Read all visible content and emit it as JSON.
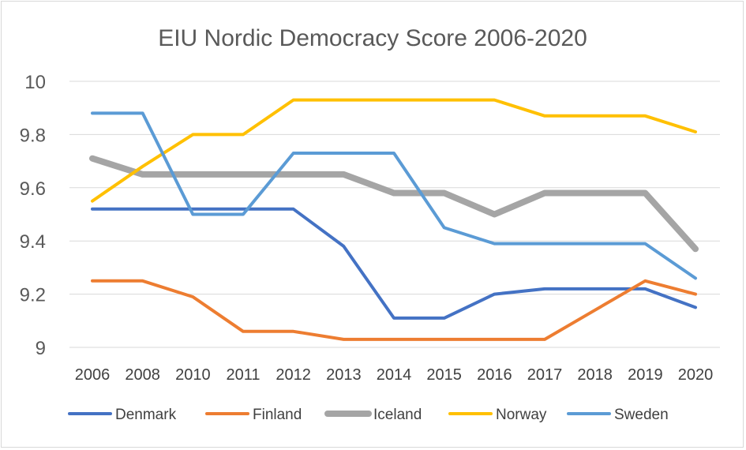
{
  "chart_data": {
    "type": "line",
    "title": "EIU Nordic Democracy Score 2006-2020",
    "xlabel": "",
    "ylabel": "",
    "categories": [
      "2006",
      "2008",
      "2010",
      "2011",
      "2012",
      "2013",
      "2014",
      "2015",
      "2016",
      "2017",
      "2018",
      "2019",
      "2020"
    ],
    "ylim": [
      9,
      10
    ],
    "yticks": [
      "9",
      "9.2",
      "9.4",
      "9.6",
      "9.8",
      "10"
    ],
    "grid": "horizontal",
    "legend_position": "bottom",
    "series": [
      {
        "name": "Denmark",
        "color": "#4472C4",
        "values": [
          9.52,
          9.52,
          9.52,
          9.52,
          9.52,
          9.38,
          9.11,
          9.11,
          9.2,
          9.22,
          9.22,
          9.22,
          9.15
        ]
      },
      {
        "name": "Finland",
        "color": "#ED7D31",
        "values": [
          9.25,
          9.25,
          9.19,
          9.06,
          9.06,
          9.03,
          9.03,
          9.03,
          9.03,
          9.03,
          9.14,
          9.25,
          9.2
        ]
      },
      {
        "name": "Iceland",
        "color": "#A5A5A5",
        "values": [
          9.71,
          9.65,
          9.65,
          9.65,
          9.65,
          9.65,
          9.58,
          9.58,
          9.5,
          9.58,
          9.58,
          9.58,
          9.37
        ]
      },
      {
        "name": "Norway",
        "color": "#FFC000",
        "values": [
          9.55,
          9.68,
          9.8,
          9.8,
          9.93,
          9.93,
          9.93,
          9.93,
          9.93,
          9.87,
          9.87,
          9.87,
          9.81
        ]
      },
      {
        "name": "Sweden",
        "color": "#5B9BD5",
        "values": [
          9.88,
          9.88,
          9.5,
          9.5,
          9.73,
          9.73,
          9.73,
          9.45,
          9.39,
          9.39,
          9.39,
          9.39,
          9.26
        ]
      }
    ]
  }
}
